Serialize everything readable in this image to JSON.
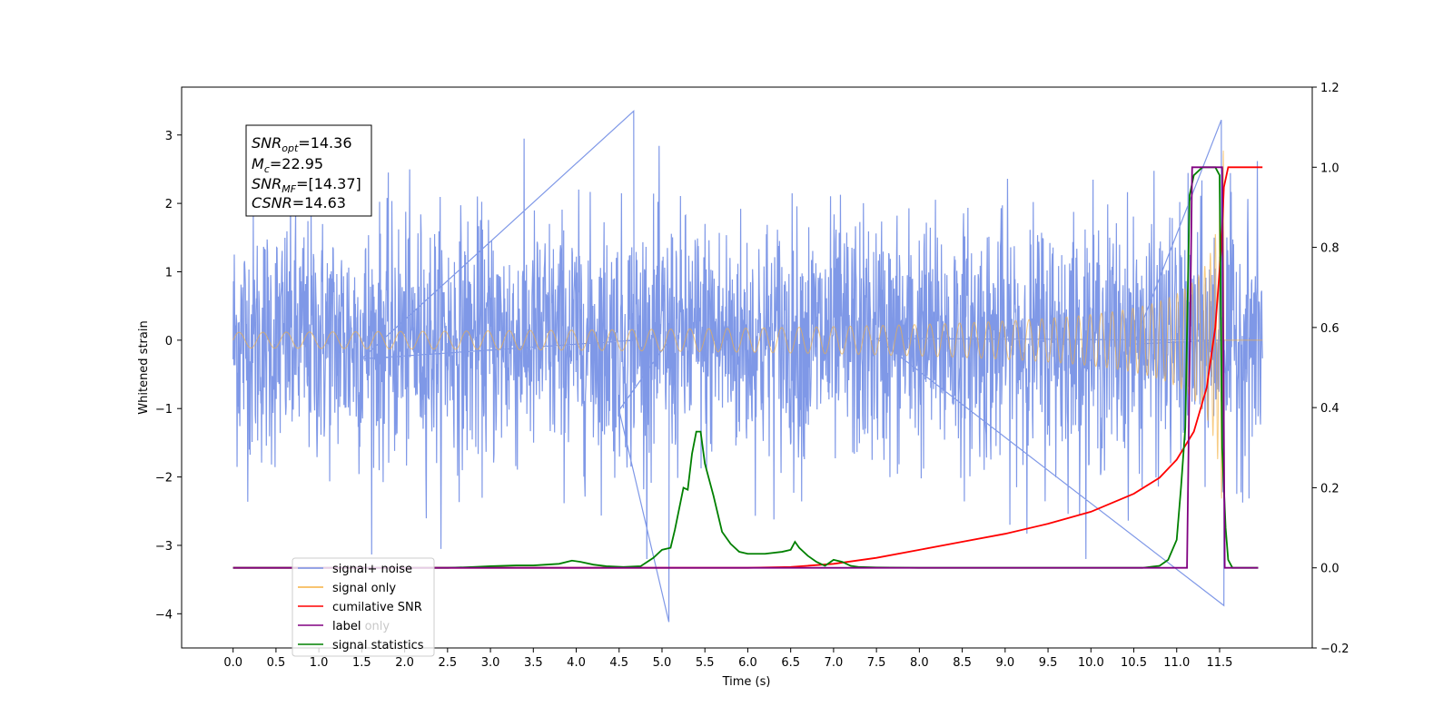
{
  "chart_data": {
    "type": "line",
    "xlabel": "Time (s)",
    "ylabel_left": "Whitened strain",
    "ylabel_right": "",
    "xlim": [
      -0.6,
      12.58
    ],
    "ylim_left": [
      -4.5,
      3.7
    ],
    "ylim_right": [
      -0.2,
      1.2
    ],
    "x_ticks": [
      0.0,
      0.5,
      1.0,
      1.5,
      2.0,
      2.5,
      3.0,
      3.5,
      4.0,
      4.5,
      5.0,
      5.5,
      6.0,
      6.5,
      7.0,
      7.5,
      8.0,
      8.5,
      9.0,
      9.5,
      10.0,
      10.5,
      11.0,
      11.5
    ],
    "x_tick_labels": [
      "0.0",
      "0.5",
      "1.0",
      "1.5",
      "2.0",
      "2.5",
      "3.0",
      "3.5",
      "4.0",
      "4.5",
      "5.0",
      "5.5",
      "6.0",
      "6.5",
      "7.0",
      "7.5",
      "8.0",
      "8.5",
      "9.0",
      "9.5",
      "10.0",
      "10.5",
      "11.0",
      "11.5"
    ],
    "y_ticks_left": [
      -4,
      -3,
      -2,
      -1,
      0,
      1,
      2,
      3
    ],
    "y_tick_labels_left": [
      "−4",
      "−3",
      "−2",
      "−1",
      "0",
      "1",
      "2",
      "3"
    ],
    "y_ticks_right": [
      -0.2,
      0.0,
      0.2,
      0.4,
      0.6,
      0.8,
      1.0,
      1.2
    ],
    "y_tick_labels_right": [
      "−0.2",
      "0.0",
      "0.2",
      "0.4",
      "0.6",
      "0.8",
      "1.0",
      "1.2"
    ],
    "grid": false,
    "legend_position": "lower-left",
    "annotation": {
      "snr_opt": {
        "base": "SNR",
        "sub": "opt",
        "value": "=14.36"
      },
      "mc": {
        "base": "M",
        "sub": "c",
        "value": "=22.95"
      },
      "snr_mf": {
        "base": "SNR",
        "sub": "MF",
        "value": "=[14.37]"
      },
      "csnr": {
        "base": "CSNR",
        "value": "=14.63"
      }
    },
    "series": [
      {
        "name": "signal+ noise",
        "axis": "left",
        "color": "#7892e6",
        "kind": "noise",
        "x_range": [
          0.0,
          12.0
        ],
        "sigma": 0.9,
        "notable_spikes": [
          {
            "x": 4.67,
            "y": 3.35
          },
          {
            "x": 5.08,
            "y": -4.12
          },
          {
            "x": 11.55,
            "y": -3.88
          },
          {
            "x": 11.52,
            "y": 3.22
          }
        ]
      },
      {
        "name": "signal only",
        "axis": "left",
        "color": "#f5b041",
        "kind": "chirp",
        "x_range": [
          0.0,
          12.0
        ],
        "peak_x": 11.55,
        "peak_amplitude": 3.0
      },
      {
        "name": "cumilative SNR",
        "axis": "right",
        "color": "#ff0000",
        "x": [
          0.0,
          6.0,
          6.5,
          7.0,
          7.5,
          8.0,
          8.5,
          9.0,
          9.5,
          10.0,
          10.5,
          10.8,
          11.0,
          11.2,
          11.35,
          11.45,
          11.52,
          11.55,
          11.6,
          12.0
        ],
        "y": [
          0.0,
          0.0,
          0.002,
          0.01,
          0.025,
          0.045,
          0.065,
          0.085,
          0.11,
          0.14,
          0.185,
          0.225,
          0.27,
          0.34,
          0.45,
          0.6,
          0.8,
          0.95,
          1.0,
          1.0
        ]
      },
      {
        "name": "label",
        "axis": "right",
        "color": "#800080",
        "x": [
          0.0,
          11.12,
          11.18,
          11.53,
          11.56,
          11.95
        ],
        "y": [
          0.0,
          0.0,
          1.0,
          1.0,
          0.0,
          0.0
        ]
      },
      {
        "name": "label only",
        "axis": "right",
        "color": "#800080",
        "hidden": true
      },
      {
        "name": "signal statistics",
        "axis": "right",
        "color": "#008000",
        "x": [
          0.0,
          0.5,
          1.0,
          1.5,
          2.0,
          2.5,
          2.8,
          3.0,
          3.3,
          3.5,
          3.8,
          3.95,
          4.05,
          4.2,
          4.35,
          4.55,
          4.75,
          4.9,
          5.0,
          5.1,
          5.15,
          5.25,
          5.3,
          5.35,
          5.4,
          5.45,
          5.5,
          5.6,
          5.7,
          5.8,
          5.9,
          6.0,
          6.2,
          6.4,
          6.5,
          6.55,
          6.6,
          6.7,
          6.8,
          6.9,
          7.0,
          7.1,
          7.2,
          7.3,
          7.5,
          8.0,
          9.0,
          10.0,
          10.6,
          10.8,
          10.9,
          11.0,
          11.05,
          11.1,
          11.15,
          11.2,
          11.3,
          11.45,
          11.5,
          11.53,
          11.57,
          11.6,
          11.65,
          11.95
        ],
        "y": [
          0.0,
          0.0,
          0.0,
          0.0,
          0.0,
          0.0,
          0.002,
          0.004,
          0.006,
          0.006,
          0.01,
          0.018,
          0.015,
          0.008,
          0.004,
          0.002,
          0.004,
          0.025,
          0.045,
          0.05,
          0.095,
          0.2,
          0.195,
          0.285,
          0.34,
          0.34,
          0.26,
          0.18,
          0.09,
          0.06,
          0.04,
          0.035,
          0.035,
          0.04,
          0.045,
          0.065,
          0.05,
          0.03,
          0.015,
          0.005,
          0.02,
          0.015,
          0.005,
          0.002,
          0.001,
          0.0,
          0.0,
          0.0,
          0.0,
          0.005,
          0.02,
          0.07,
          0.2,
          0.35,
          0.93,
          0.98,
          1.0,
          1.0,
          0.98,
          0.3,
          0.1,
          0.02,
          0.0,
          0.0
        ]
      }
    ]
  }
}
